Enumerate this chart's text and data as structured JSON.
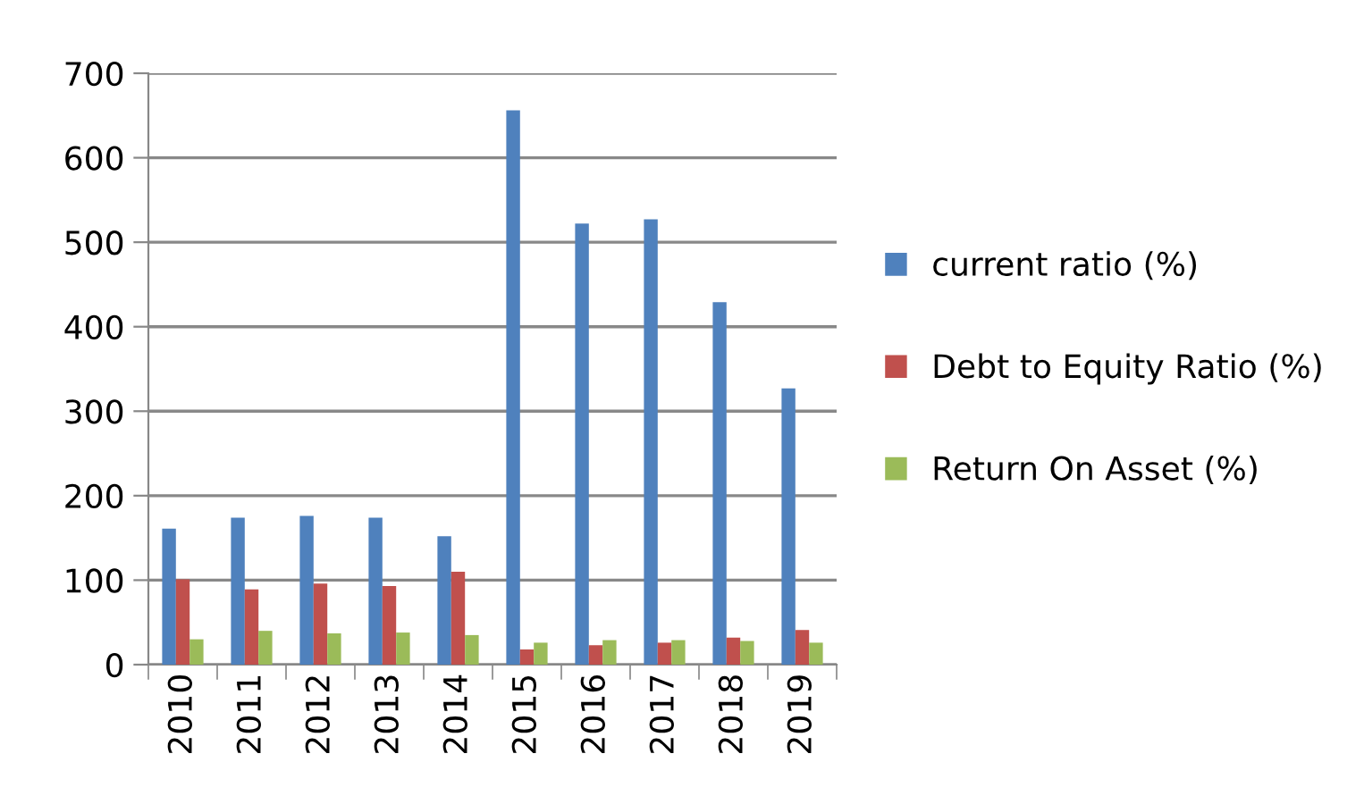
{
  "chart_data": {
    "type": "bar",
    "categories": [
      "2010",
      "2011",
      "2012",
      "2013",
      "2014",
      "2015",
      "2016",
      "2017",
      "2018",
      "2019"
    ],
    "series": [
      {
        "name": "current ratio (%)",
        "color": "#4f81bd",
        "values": [
          161,
          174,
          176,
          174,
          152,
          656,
          522,
          527,
          429,
          327
        ]
      },
      {
        "name": "Debt to Equity Ratio (%)",
        "color": "#c0504d",
        "values": [
          101,
          89,
          96,
          93,
          110,
          18,
          23,
          26,
          32,
          41
        ]
      },
      {
        "name": "Return On Asset (%)",
        "color": "#9bbb59",
        "values": [
          30,
          40,
          37,
          38,
          35,
          26,
          29,
          29,
          28,
          26
        ]
      }
    ],
    "ylim": [
      0,
      700
    ],
    "yticks": [
      0,
      100,
      200,
      300,
      400,
      500,
      600,
      700
    ],
    "grid": "y",
    "legend": "right"
  }
}
